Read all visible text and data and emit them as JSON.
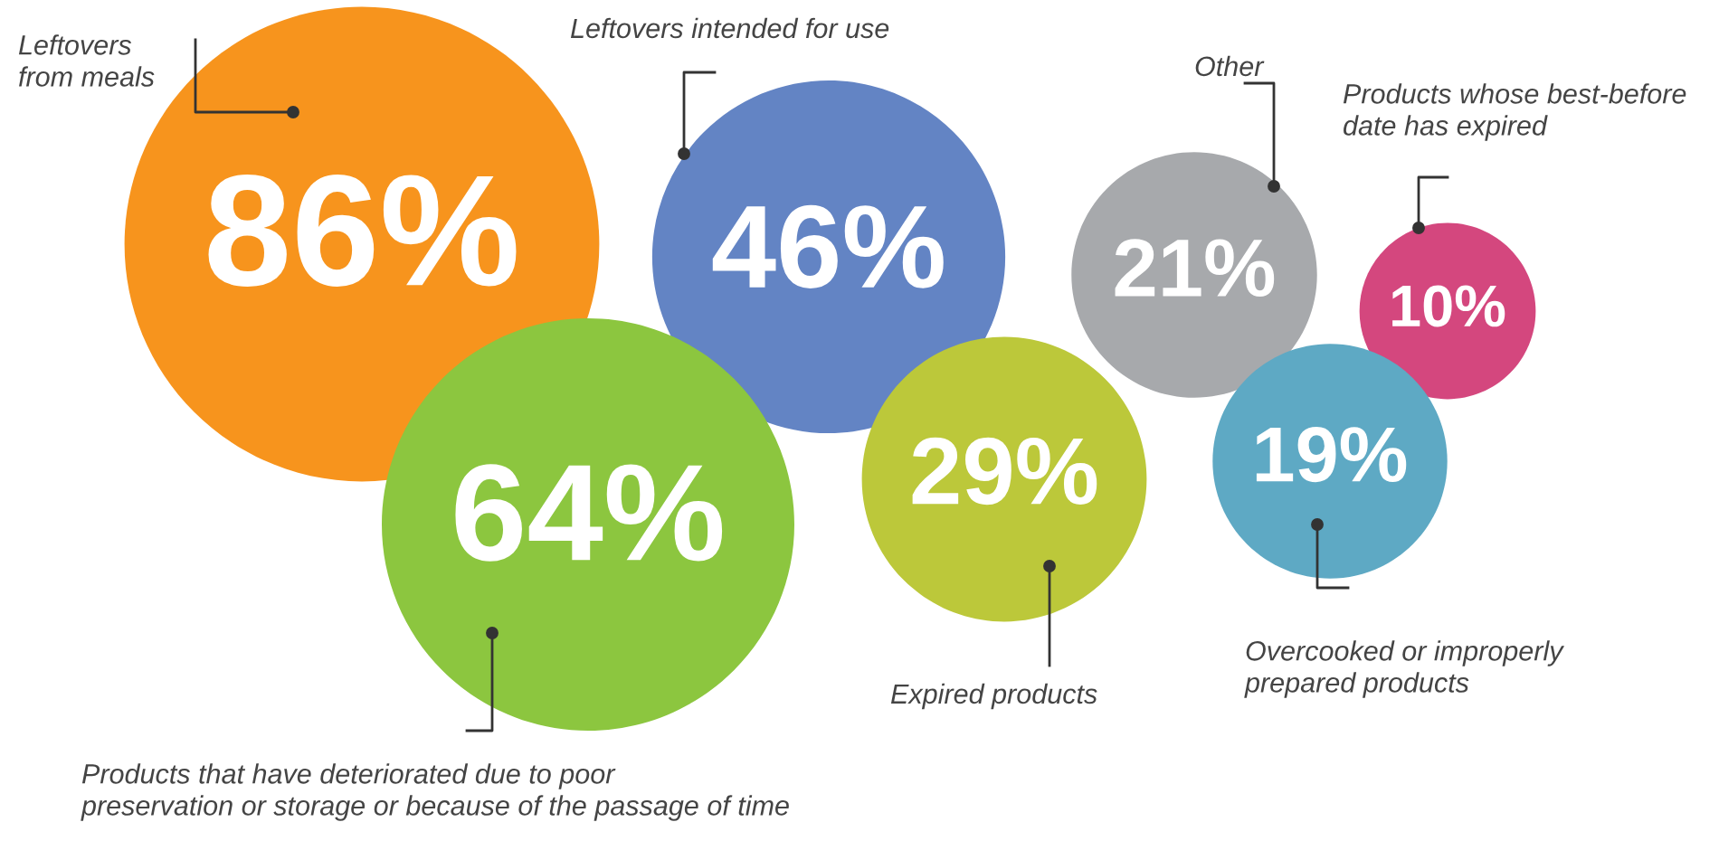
{
  "chart_data": {
    "type": "other",
    "categories": [
      "Leftovers\nfrom meals",
      "Leftovers intended for use",
      "Other",
      "Products whose best-before\ndate has expired",
      "Products that have deteriorated due to poor\npreservation or storage or because of the passage of time",
      "Expired products",
      "Overcooked or improperly\nprepared products"
    ],
    "values": [
      86,
      46,
      21,
      10,
      64,
      29,
      19
    ],
    "value_labels": [
      "86%",
      "46%",
      "21%",
      "10%",
      "64%",
      "29%",
      "19%"
    ],
    "colors": [
      "#f7941d",
      "#6384c4",
      "#a7a9ac",
      "#d4477e",
      "#8cc63f",
      "#bcc83a",
      "#5ea9c4"
    ]
  }
}
